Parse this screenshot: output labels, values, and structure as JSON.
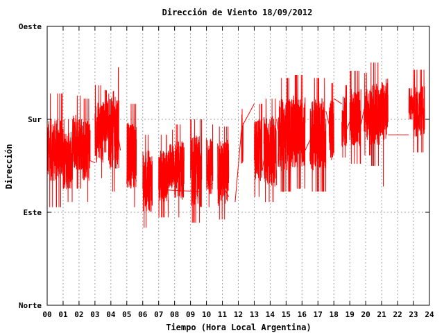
{
  "chart_data": {
    "type": "line",
    "title": "Dirección de Viento 18/09/2012",
    "xlabel": "Tiempo (Hora Local Argentina)",
    "ylabel": "Dirección",
    "xlim": [
      0,
      24
    ],
    "ylim": [
      0,
      270
    ],
    "x_ticks": [
      "00",
      "01",
      "02",
      "03",
      "04",
      "05",
      "06",
      "07",
      "08",
      "09",
      "10",
      "11",
      "12",
      "13",
      "14",
      "15",
      "16",
      "17",
      "18",
      "19",
      "20",
      "21",
      "22",
      "23",
      "24"
    ],
    "y_ticks": [
      {
        "value": 0,
        "label": "Norte"
      },
      {
        "value": 90,
        "label": "Este"
      },
      {
        "value": 180,
        "label": "Sur"
      },
      {
        "value": 270,
        "label": "Oeste"
      }
    ],
    "grid": true,
    "colors": {
      "series": "#ff0000",
      "grid": "#a0a0a0",
      "axis": "#000000"
    },
    "series": [
      {
        "segments": [
          {
            "x": [
              0.0,
              1.0
            ],
            "mean": 150,
            "amp": 30,
            "spike": 55
          },
          {
            "x": [
              1.0,
              1.6
            ],
            "mean": 140,
            "amp": 28,
            "spike": 40
          },
          {
            "x": [
              1.6,
              2.2
            ],
            "mean": 158,
            "amp": 28,
            "spike": 45
          },
          {
            "x": [
              2.2,
              2.7
            ],
            "mean": 150,
            "amp": 30,
            "spike": 50
          },
          {
            "x": [
              3.0,
              3.5
            ],
            "mean": 168,
            "amp": 30,
            "spike": 45
          },
          {
            "x": [
              3.5,
              3.85
            ],
            "mean": 178,
            "amp": 20,
            "spike": 30
          },
          {
            "x": [
              3.85,
              4.5
            ],
            "mean": 170,
            "amp": 38,
            "spike": 60
          },
          {
            "x": [
              5.0,
              5.6
            ],
            "mean": 145,
            "amp": 32,
            "spike": 50
          },
          {
            "x": [
              6.0,
              6.6
            ],
            "mean": 120,
            "amp": 30,
            "spike": 45
          },
          {
            "x": [
              7.0,
              7.6
            ],
            "mean": 125,
            "amp": 25,
            "spike": 40
          },
          {
            "x": [
              7.6,
              8.0
            ],
            "mean": 135,
            "amp": 22,
            "spike": 35
          },
          {
            "x": [
              8.0,
              8.6
            ],
            "mean": 130,
            "amp": 30,
            "spike": 45
          },
          {
            "x": [
              9.0,
              9.7
            ],
            "mean": 130,
            "amp": 35,
            "spike": 50
          },
          {
            "x": [
              10.0,
              10.4
            ],
            "mean": 135,
            "amp": 28,
            "spike": 40
          },
          {
            "x": [
              10.7,
              11.4
            ],
            "mean": 128,
            "amp": 32,
            "spike": 45
          },
          {
            "x": [
              12.2,
              12.3
            ],
            "mean": 160,
            "amp": 25,
            "spike": 30
          },
          {
            "x": [
              13.0,
              13.5
            ],
            "mean": 150,
            "amp": 30,
            "spike": 45
          },
          {
            "x": [
              13.6,
              14.4
            ],
            "mean": 150,
            "amp": 35,
            "spike": 50
          },
          {
            "x": [
              14.5,
              15.3
            ],
            "mean": 165,
            "amp": 35,
            "spike": 55
          },
          {
            "x": [
              15.3,
              16.2
            ],
            "mean": 168,
            "amp": 35,
            "spike": 55
          },
          {
            "x": [
              16.5,
              17.5
            ],
            "mean": 165,
            "amp": 35,
            "spike": 55
          },
          {
            "x": [
              17.7,
              18.0
            ],
            "mean": 170,
            "amp": 30,
            "spike": 45
          },
          {
            "x": [
              18.5,
              18.8
            ],
            "mean": 178,
            "amp": 25,
            "spike": 35
          },
          {
            "x": [
              19.0,
              19.7
            ],
            "mean": 182,
            "amp": 28,
            "spike": 45
          },
          {
            "x": [
              19.9,
              20.3
            ],
            "mean": 185,
            "amp": 25,
            "spike": 40
          },
          {
            "x": [
              20.3,
              21.0
            ],
            "mean": 185,
            "amp": 30,
            "spike": 50
          },
          {
            "x": [
              21.0,
              21.4
            ],
            "mean": 190,
            "amp": 30,
            "spike": 75
          },
          {
            "x": [
              22.7,
              23.0
            ],
            "mean": 195,
            "amp": 10,
            "spike": 15
          },
          {
            "x": [
              23.0,
              23.7
            ],
            "mean": 188,
            "amp": 25,
            "spike": 40
          }
        ],
        "points": [
          [
            2.7,
            140
          ],
          [
            3.0,
            138
          ],
          [
            4.5,
            160
          ],
          [
            4.6,
            150
          ],
          [
            5.0,
            155
          ],
          [
            5.6,
            120
          ],
          [
            6.0,
            115
          ],
          [
            6.6,
            110
          ],
          [
            7.0,
            112
          ],
          [
            9.7,
            110
          ],
          [
            10.0,
            115
          ],
          [
            10.4,
            118
          ],
          [
            10.7,
            125
          ],
          [
            11.4,
            105
          ],
          [
            11.8,
            100
          ],
          [
            12.2,
            170
          ],
          [
            12.3,
            175
          ],
          [
            13.0,
            195
          ],
          [
            13.5,
            130
          ],
          [
            13.6,
            140
          ],
          [
            14.4,
            180
          ],
          [
            14.5,
            170
          ],
          [
            16.2,
            150
          ],
          [
            16.5,
            160
          ],
          [
            17.5,
            188
          ],
          [
            17.7,
            175
          ],
          [
            18.0,
            200
          ],
          [
            18.5,
            195
          ],
          [
            18.8,
            170
          ],
          [
            19.0,
            178
          ],
          [
            19.7,
            175
          ],
          [
            19.9,
            190
          ],
          [
            21.4,
            165
          ],
          [
            22.7,
            165
          ]
        ]
      }
    ]
  }
}
